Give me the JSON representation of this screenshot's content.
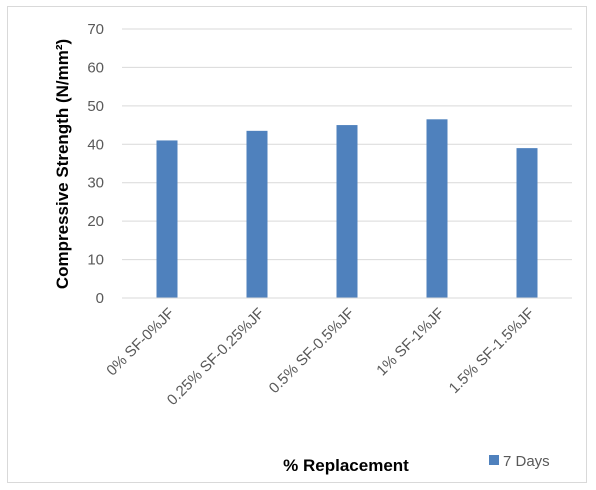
{
  "chart_data": {
    "type": "bar",
    "categories": [
      "0% SF-0%JF",
      "0.25% SF-0.25%JF",
      "0.5% SF-0.5%JF",
      "1% SF-1%JF",
      "1.5% SF-1.5%JF"
    ],
    "series": [
      {
        "name": "7 Days",
        "values": [
          41,
          43.5,
          45,
          46.5,
          39
        ],
        "color": "#4f81bd"
      }
    ],
    "xlabel": "% Replacement",
    "ylabel": "Compressive Strength (N/mm²)",
    "ylim": [
      0,
      70
    ],
    "yticks": [
      0,
      10,
      20,
      30,
      40,
      50,
      60,
      70
    ],
    "grid": true,
    "legend_position": "bottom-right"
  }
}
